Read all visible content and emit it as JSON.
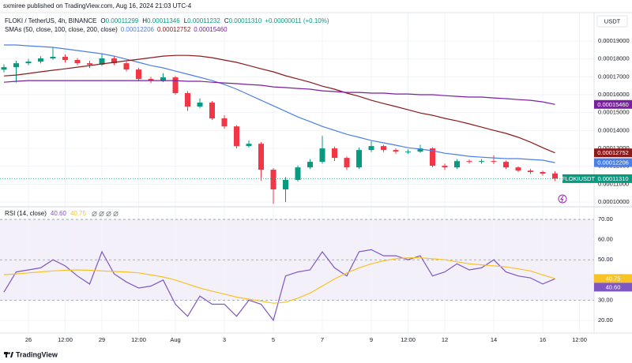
{
  "header": {
    "publisher": "sxmiree published on TradingView.com, Aug 16, 2024 21:03 UTC-4",
    "logo": "TradingView"
  },
  "chart_data": [
    {
      "type": "candlestick",
      "title": "FLOKI / TetherUS, 4h, BINANCE",
      "currency": "USDT",
      "symbol": "FLOKIUSDT",
      "ohlc_legend": [
        {
          "label": "O",
          "value": "0.00011299"
        },
        {
          "label": "H",
          "value": "0.00011346"
        },
        {
          "label": "L",
          "value": "0.00011232"
        },
        {
          "label": "C",
          "value": "0.00011310"
        }
      ],
      "change": "+0.00000011 (+0.10%)",
      "indicator": "SMAs (50, close, 100, close, 200, close)",
      "categories": [
        null,
        null,
        "26",
        null,
        null,
        "12:00",
        null,
        null,
        "29",
        null,
        null,
        "12:00",
        null,
        null,
        "Aug",
        null,
        null,
        null,
        "3",
        null,
        null,
        null,
        "5",
        null,
        null,
        null,
        "7",
        null,
        null,
        null,
        "9",
        null,
        null,
        "12:00",
        null,
        null,
        "12",
        null,
        null,
        null,
        "14",
        null,
        null,
        null,
        "16",
        null,
        null,
        "12:00"
      ],
      "open": [
        0.000174,
        0.0001754,
        0.0001776,
        0.0001785,
        0.0001803,
        0.0001812,
        0.0001794,
        0.0001776,
        0.0001768,
        0.0001803,
        0.0001776,
        0.0001741,
        0.0001688,
        0.0001679,
        0.0001697,
        0.0001609,
        0.0001534,
        0.0001556,
        0.0001468,
        0.0001423,
        0.0001313,
        0.0001326,
        0.0001181,
        0.0001071,
        0.0001124,
        0.0001194,
        0.0001225,
        0.00013,
        0.0001247,
        0.0001194,
        0.0001291,
        0.0001313,
        0.0001291,
        0.0001282,
        0.0001282,
        0.00013,
        0.0001203,
        0.0001194,
        0.0001229,
        0.0001225,
        0.0001229,
        0.0001225,
        0.0001194,
        0.0001176,
        0.0001168,
        0.000116,
        null,
        null
      ],
      "high": [
        0.000177,
        0.000179,
        0.00018,
        0.0001815,
        0.0001865,
        0.0001825,
        0.0001805,
        0.000179,
        0.000183,
        0.0001815,
        0.0001785,
        0.000175,
        0.00017,
        0.000172,
        0.0001705,
        0.000162,
        0.000158,
        0.0001565,
        0.0001485,
        0.000143,
        0.0001345,
        0.0001335,
        0.000119,
        0.000114,
        0.0001205,
        0.000124,
        0.000137,
        0.000131,
        0.0001255,
        0.0001305,
        0.000134,
        0.000132,
        0.00013,
        0.0001295,
        0.000132,
        0.0001306,
        0.0001215,
        0.000124,
        0.0001238,
        0.000124,
        0.0001262,
        0.0001232,
        0.00012,
        0.0001185,
        0.0001175,
        0.0001172,
        null,
        null
      ],
      "low": [
        0.0001725,
        0.0001668,
        0.0001765,
        0.0001775,
        0.0001795,
        0.000178,
        0.0001765,
        0.000175,
        0.000176,
        0.0001765,
        0.000173,
        0.0001675,
        0.0001665,
        0.000167,
        0.00016,
        0.000151,
        0.0001525,
        0.000146,
        0.000141,
        0.00013,
        0.0001305,
        0.000112,
        9.9e-05,
        0.0001,
        0.0001115,
        0.0001185,
        0.0001215,
        0.000123,
        0.000118,
        0.0001185,
        0.000128,
        0.000128,
        0.000127,
        0.000127,
        0.0001275,
        0.0001195,
        0.000118,
        0.0001185,
        0.0001215,
        0.0001215,
        0.0001212,
        0.0001185,
        0.0001168,
        0.0001158,
        0.0001148,
        0.0001118,
        null,
        null
      ],
      "close": [
        0.0001754,
        0.0001776,
        0.0001785,
        0.0001803,
        0.0001812,
        0.0001794,
        0.0001776,
        0.0001768,
        0.0001803,
        0.0001776,
        0.0001741,
        0.0001688,
        0.0001679,
        0.0001697,
        0.0001609,
        0.0001534,
        0.0001556,
        0.0001468,
        0.0001423,
        0.0001313,
        0.0001326,
        0.0001181,
        0.0001071,
        0.0001124,
        0.0001194,
        0.0001225,
        0.00013,
        0.0001247,
        0.0001194,
        0.0001291,
        0.0001313,
        0.0001291,
        0.0001282,
        0.0001282,
        0.00013,
        0.0001203,
        0.0001194,
        0.0001229,
        0.0001225,
        0.0001229,
        0.0001225,
        0.0001194,
        0.0001176,
        0.0001168,
        0.0001159,
        0.0001131,
        null,
        null
      ],
      "up_color": "#089981",
      "down_color": "#f23645",
      "series": [
        {
          "color": "#4a7fe6",
          "last_value_label": "0.00012206",
          "values": [
            0.0001878,
            0.0001878,
            0.0001873,
            0.0001869,
            0.0001865,
            0.0001856,
            0.0001847,
            0.0001838,
            0.0001829,
            0.0001816,
            0.0001798,
            0.0001781,
            0.0001763,
            0.000175,
            0.0001732,
            0.0001715,
            0.0001697,
            0.0001679,
            0.0001657,
            0.0001631,
            0.00016,
            0.0001569,
            0.0001538,
            0.0001507,
            0.0001476,
            0.000145,
            0.0001423,
            0.0001401,
            0.0001379,
            0.0001362,
            0.0001344,
            0.0001331,
            0.0001318,
            0.0001304,
            0.0001296,
            0.0001287,
            0.0001273,
            0.0001265,
            0.0001256,
            0.0001251,
            0.0001247,
            0.0001243,
            0.0001243,
            0.0001238,
            0.0001234,
            0.00012206,
            null,
            null
          ]
        },
        {
          "color": "#8b1a1a",
          "last_value_label": "0.00012752",
          "values": [
            0.0001705,
            0.000171,
            0.0001719,
            0.0001728,
            0.0001737,
            0.0001745,
            0.0001754,
            0.0001763,
            0.0001772,
            0.0001781,
            0.000179,
            0.0001798,
            0.0001807,
            0.0001816,
            0.000182,
            0.000182,
            0.0001816,
            0.0001807,
            0.0001794,
            0.0001781,
            0.0001763,
            0.0001745,
            0.0001728,
            0.0001706,
            0.0001688,
            0.000167,
            0.0001648,
            0.0001631,
            0.0001609,
            0.0001591,
            0.0001569,
            0.0001551,
            0.0001534,
            0.0001516,
            0.0001498,
            0.0001485,
            0.0001468,
            0.0001454,
            0.0001437,
            0.0001419,
            0.0001401,
            0.0001384,
            0.0001362,
            0.0001335,
            0.0001304,
            0.00012752,
            null,
            null
          ]
        },
        {
          "color": "#7b1fa2",
          "last_value_label": "0.00015460",
          "values": [
            0.000167,
            0.0001675,
            0.0001679,
            0.0001679,
            0.0001679,
            0.0001679,
            0.0001679,
            0.0001679,
            0.0001679,
            0.0001679,
            0.0001679,
            0.0001679,
            0.0001679,
            0.0001679,
            0.0001679,
            0.0001675,
            0.0001675,
            0.000167,
            0.0001666,
            0.0001662,
            0.0001657,
            0.0001653,
            0.0001644,
            0.000164,
            0.0001635,
            0.0001631,
            0.0001622,
            0.0001618,
            0.0001613,
            0.0001613,
            0.0001609,
            0.0001609,
            0.0001604,
            0.0001604,
            0.00016,
            0.00016,
            0.0001595,
            0.0001591,
            0.0001587,
            0.0001587,
            0.0001582,
            0.0001578,
            0.0001573,
            0.0001569,
            0.000156,
            0.0001546,
            null,
            null
          ]
        }
      ],
      "ylim": [
        9.74e-05,
        0.000205
      ],
      "yticks": [
        {
          "value": 0.0001,
          "label": "0.00010000"
        },
        {
          "value": 0.00011,
          "label": "0.00011000"
        },
        {
          "value": 0.00012,
          "label": "0.00012000"
        },
        {
          "value": 0.00013,
          "label": "0.00013000"
        },
        {
          "value": 0.00014,
          "label": "0.00014000"
        },
        {
          "value": 0.00015,
          "label": "0.00015000"
        },
        {
          "value": 0.00016,
          "label": "0.00016000"
        },
        {
          "value": 0.00017,
          "label": "0.00017000"
        },
        {
          "value": 0.00018,
          "label": "0.00018000"
        },
        {
          "value": 0.00019,
          "label": "0.00019000"
        }
      ],
      "grid": true
    },
    {
      "type": "line",
      "title": "RSI (14, close)",
      "series": [
        {
          "color": "#7e57c2",
          "last_value_label": "40.60",
          "values": [
            34,
            44,
            45,
            46,
            50,
            47,
            42,
            38,
            54,
            43,
            39,
            36,
            37,
            40,
            28,
            22,
            32,
            28,
            28,
            22,
            30,
            28,
            20,
            42,
            44,
            45,
            54,
            46,
            42,
            54,
            55,
            52,
            52,
            50,
            52,
            42,
            44,
            48,
            45,
            46,
            50,
            44,
            42,
            41,
            38,
            40.6,
            null,
            null
          ]
        },
        {
          "color": "#f7c325",
          "last_value_label": "40.75",
          "values": [
            42.6,
            43,
            43.5,
            44,
            44.5,
            44.8,
            45,
            44.8,
            44.5,
            44.2,
            44,
            43.5,
            42.5,
            41.5,
            40,
            38,
            36,
            34.5,
            33,
            31.5,
            30.5,
            29.5,
            28.5,
            29,
            31,
            33.5,
            37,
            40.5,
            43.5,
            46,
            48,
            49.5,
            50.5,
            51,
            51,
            50.5,
            50,
            49,
            48,
            47.5,
            47,
            46.5,
            45.5,
            44.5,
            42.5,
            40.75,
            null,
            null
          ]
        }
      ],
      "band": [
        30,
        70
      ],
      "levels": [
        70,
        50,
        30
      ],
      "ylim": [
        14.5,
        75.5
      ],
      "yticks": [
        {
          "value": 20,
          "label": "20.00"
        },
        {
          "value": 30,
          "label": "30.00"
        },
        {
          "value": 40,
          "label": "40.00"
        },
        {
          "value": 50,
          "label": "50.00"
        },
        {
          "value": 60,
          "label": "60.00"
        },
        {
          "value": 70,
          "label": "70.00"
        }
      ],
      "grid": true
    }
  ]
}
